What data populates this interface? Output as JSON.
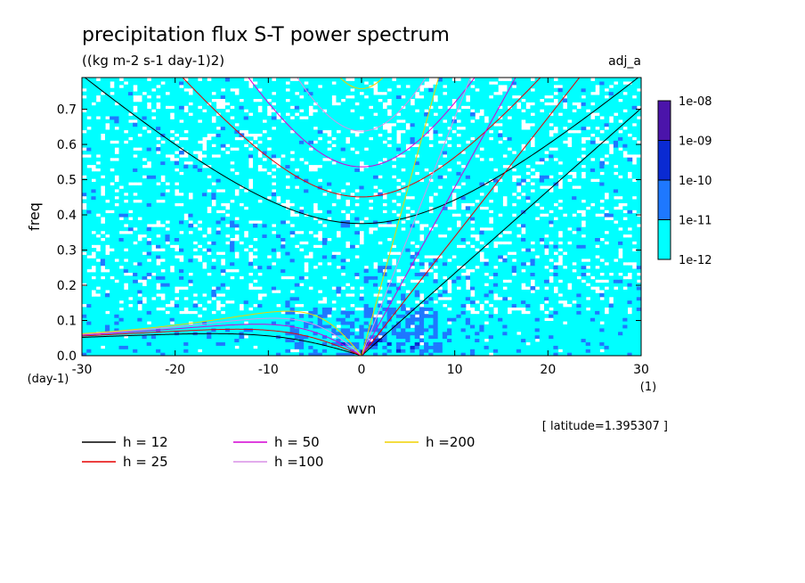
{
  "title": "precipitation flux S-T power spectrum",
  "units": "((kg m-2 s-1 day-1)2)",
  "experiment": "adj_a",
  "latitude_note": "[ latitude=1.395307 ]",
  "colors": {
    "lvl_1e-12": "#00ffff",
    "lvl_1e-11": "#1e78ff",
    "lvl_1e-10": "#0a2ad2",
    "lvl_1e-09": "#4b14aa",
    "h12": "#000000",
    "h25": "#e60000",
    "h50": "#d400d4",
    "h100": "#d891e6",
    "h200": "#f0d200"
  },
  "chart_data": {
    "type": "heatmap",
    "title": "precipitation flux S-T power spectrum",
    "xlabel": "wvn",
    "ylabel": "freq",
    "x_unit": "(1)",
    "y_unit": "(day-1)",
    "xlim": [
      -30,
      30
    ],
    "ylim": [
      0,
      0.79
    ],
    "x_ticks": [
      -30,
      -20,
      -10,
      0,
      10,
      20,
      30
    ],
    "y_ticks": [
      0.0,
      0.1,
      0.2,
      0.3,
      0.4,
      0.5,
      0.6,
      0.7
    ],
    "x_tick_labels": [
      "-30",
      "-20",
      "-10",
      "0",
      "10",
      "20",
      "30"
    ],
    "y_tick_labels": [
      "0.0",
      "0.1",
      "0.2",
      "0.3",
      "0.4",
      "0.5",
      "0.6",
      "0.7"
    ],
    "colorbar_labels": [
      "1e-08",
      "1e-09",
      "1e-10",
      "1e-11",
      "1e-12"
    ],
    "dispersion_curves": [
      {
        "label": "h = 12",
        "h": 12
      },
      {
        "label": "h = 25",
        "h": 25
      },
      {
        "label": "h = 50",
        "h": 50
      },
      {
        "label": "h =100",
        "h": 100
      },
      {
        "label": "h =200",
        "h": 200
      }
    ]
  }
}
